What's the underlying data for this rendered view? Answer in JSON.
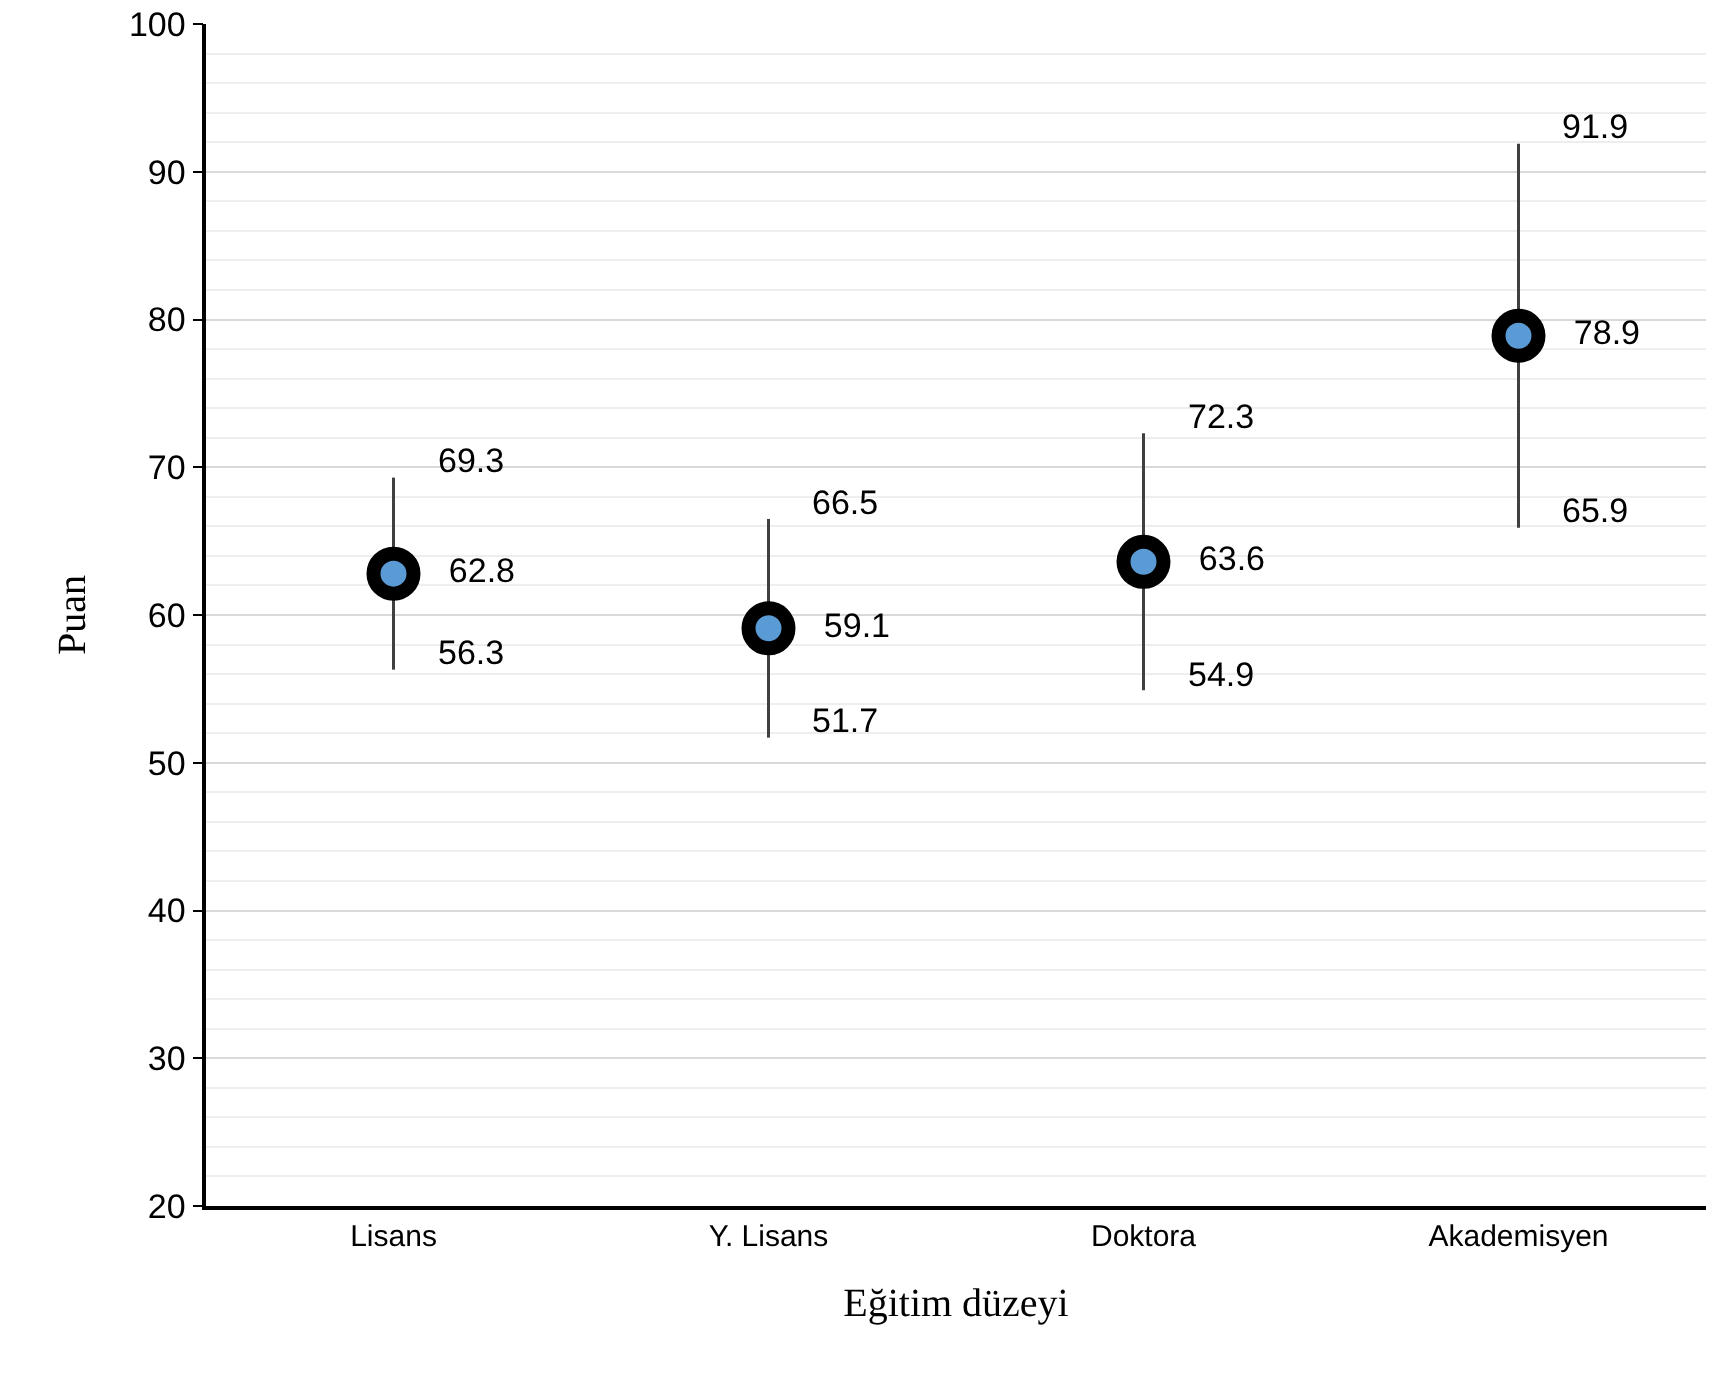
{
  "chart_data": {
    "type": "scatter",
    "xlabel": "Eğitim düzeyi",
    "ylabel": "Puan",
    "categories": [
      "Lisans",
      "Y. Lisans",
      "Doktora",
      "Akademisyen"
    ],
    "series": [
      {
        "color": "#000000",
        "values": [
          62.8,
          59.1,
          63.6,
          78.9
        ],
        "errors": [
          [
            56.3,
            69.3
          ],
          [
            51.7,
            66.5
          ],
          [
            54.9,
            72.3
          ],
          [
            65.9,
            91.9
          ]
        ]
      }
    ],
    "data_labels": true,
    "marker": "circle",
    "ylim": [
      20,
      100
    ],
    "yticks": [
      20,
      30,
      40,
      50,
      60,
      70,
      80,
      90,
      100
    ],
    "grid": "y",
    "annotations": [
      {
        "text": "69.3",
        "x": "Lisans",
        "y": 69.3
      },
      {
        "text": "56.3",
        "x": "Lisans",
        "y": 56.3
      },
      {
        "text": "66.5",
        "x": "Y. Lisans",
        "y": 66.5
      },
      {
        "text": "51.7",
        "x": "Y. Lisans",
        "y": 51.7
      },
      {
        "text": "72.3",
        "x": "Doktora",
        "y": 72.3
      },
      {
        "text": "54.9",
        "x": "Doktora",
        "y": 54.9
      },
      {
        "text": "91.9",
        "x": "Akademisyen",
        "y": 91.9
      },
      {
        "text": "65.9",
        "x": "Akademisyen",
        "y": 65.9
      }
    ]
  }
}
